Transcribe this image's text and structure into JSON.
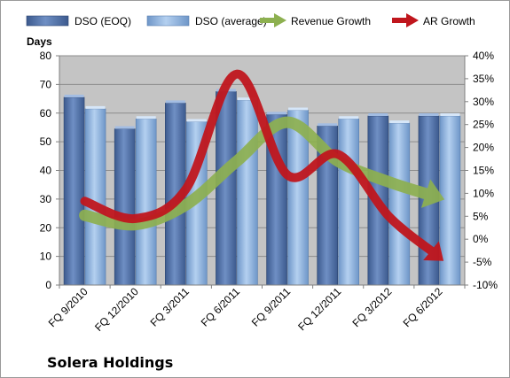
{
  "chart_data": {
    "type": "bar",
    "ylabel": "Days",
    "company": "Solera Holdings",
    "categories": [
      "FQ 9/2010",
      "FQ 12/2010",
      "FQ 3/2011",
      "FQ 6/2011",
      "FQ 9/2011",
      "FQ 12/2011",
      "FQ 3/2012",
      "FQ 6/2012"
    ],
    "ylim": [
      0,
      80
    ],
    "yticks": [
      0,
      10,
      20,
      30,
      40,
      50,
      60,
      70,
      80
    ],
    "y2lim": [
      -0.1,
      0.4
    ],
    "y2ticks": [
      "-10%",
      "-5%",
      "0%",
      "5%",
      "10%",
      "15%",
      "20%",
      "25%",
      "30%",
      "35%",
      "40%"
    ],
    "series": [
      {
        "name": "DSO (EOQ)",
        "kind": "bar",
        "color": "#4f6fa8",
        "values": [
          65.5,
          54.5,
          63.5,
          67.5,
          59.5,
          55.5,
          59,
          59
        ]
      },
      {
        "name": "DSO (average)",
        "kind": "bar",
        "color": "#8db4e2",
        "values": [
          61.5,
          58,
          57,
          64.5,
          61,
          58,
          56.5,
          59
        ]
      },
      {
        "name": "Revenue Growth",
        "kind": "line",
        "axis": "right",
        "color": "#8db050",
        "values": [
          0.052,
          0.032,
          0.075,
          0.17,
          0.255,
          0.17,
          0.125,
          0.09
        ]
      },
      {
        "name": "AR Growth",
        "kind": "line",
        "axis": "right",
        "color": "#c0161d",
        "values": [
          0.083,
          0.045,
          0.11,
          0.36,
          0.14,
          0.185,
          0.05,
          -0.04
        ]
      }
    ],
    "grid": true,
    "legend_position": "top"
  }
}
